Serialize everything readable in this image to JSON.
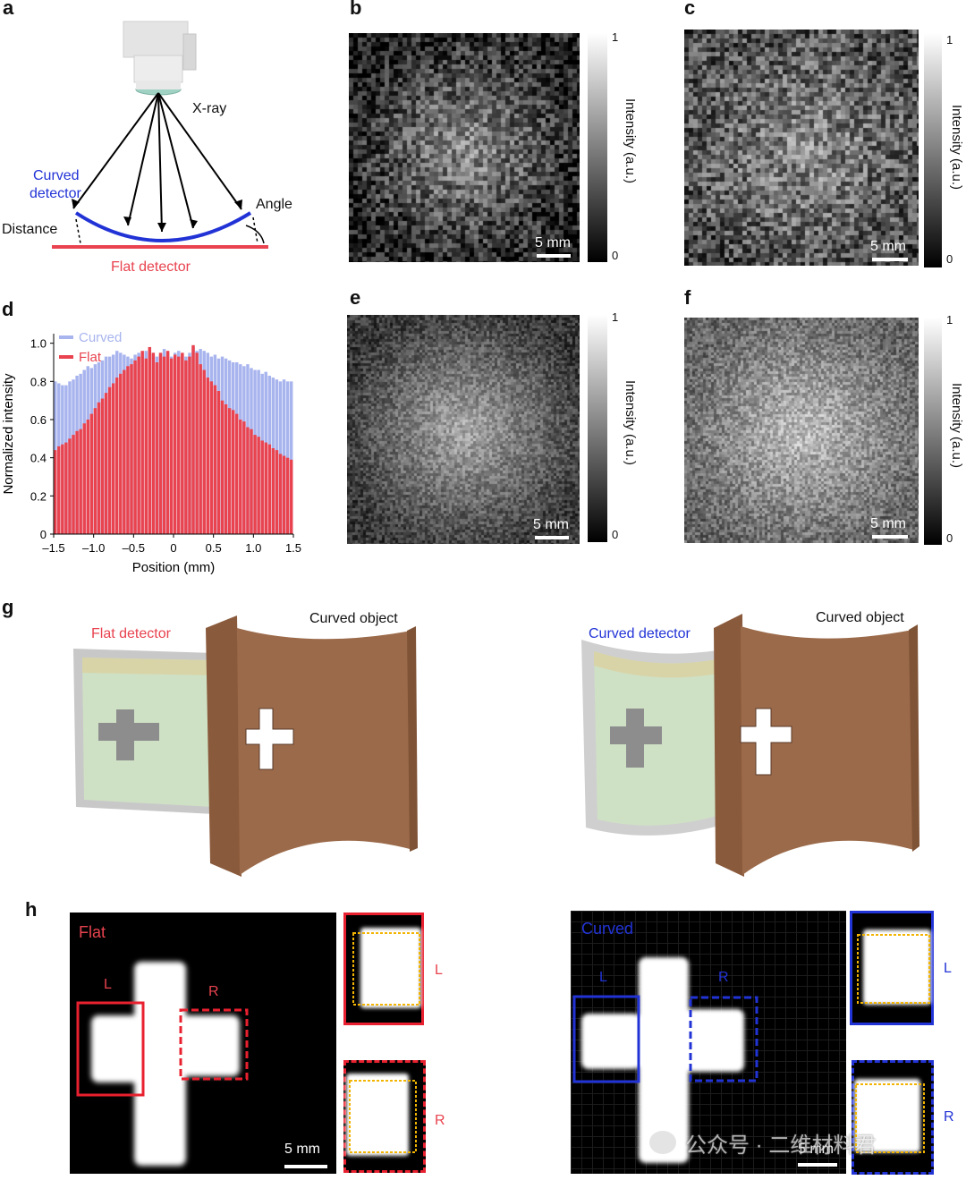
{
  "panels": {
    "a": "a",
    "b": "b",
    "c": "c",
    "d": "d",
    "e": "e",
    "f": "f",
    "g": "g",
    "h": "h"
  },
  "panel_a": {
    "xray": "X-ray",
    "curved_detector_line1": "Curved",
    "curved_detector_line2": "detector",
    "distance": "Distance",
    "angle": "Angle",
    "flat_detector": "Flat detector",
    "colors": {
      "curved": "#2233d6",
      "flat": "#e8434f"
    }
  },
  "maps": {
    "scale": "5 mm",
    "cb_max": "1",
    "cb_min": "0",
    "cb_title": "Intensity (a.u.)"
  },
  "chart_data": {
    "type": "bar",
    "xlabel": "Position (mm)",
    "ylabel": "Normalized intensity",
    "xlim": [
      -1.5,
      1.5
    ],
    "ylim": [
      0,
      1.05
    ],
    "xticks": [
      "–1.5",
      "–1.0",
      "–0.5",
      "0",
      "0.5",
      "1.0",
      "1.5"
    ],
    "yticks": [
      "0",
      "0.2",
      "0.4",
      "0.6",
      "0.8",
      "1.0"
    ],
    "legend_position": "top-left",
    "series": [
      {
        "name": "Curved",
        "color": "#a8b4ee",
        "values": [
          0.8,
          0.79,
          0.78,
          0.78,
          0.8,
          0.81,
          0.83,
          0.84,
          0.86,
          0.88,
          0.87,
          0.89,
          0.9,
          0.91,
          0.93,
          0.93,
          0.94,
          0.96,
          0.95,
          0.94,
          0.93,
          0.92,
          0.94,
          0.95,
          0.93,
          0.96,
          0.95,
          0.94,
          0.93,
          0.94,
          0.97,
          0.95,
          0.93,
          0.95,
          0.96,
          0.94,
          0.93,
          0.95,
          0.98,
          0.96,
          0.97,
          0.96,
          0.95,
          0.93,
          0.94,
          0.92,
          0.93,
          0.92,
          0.91,
          0.9,
          0.9,
          0.89,
          0.88,
          0.89,
          0.87,
          0.86,
          0.86,
          0.84,
          0.85,
          0.83,
          0.82,
          0.81,
          0.8,
          0.81,
          0.8,
          0.8
        ]
      },
      {
        "name": "Flat",
        "color": "#e8434f",
        "values": [
          0.44,
          0.46,
          0.47,
          0.48,
          0.5,
          0.52,
          0.54,
          0.55,
          0.58,
          0.6,
          0.63,
          0.66,
          0.69,
          0.71,
          0.74,
          0.77,
          0.79,
          0.82,
          0.84,
          0.86,
          0.88,
          0.89,
          0.91,
          0.93,
          0.96,
          0.92,
          0.98,
          0.95,
          0.9,
          0.95,
          0.93,
          0.96,
          0.92,
          0.94,
          0.93,
          0.95,
          0.91,
          0.93,
          0.99,
          0.95,
          0.89,
          0.86,
          0.82,
          0.8,
          0.78,
          0.75,
          0.7,
          0.68,
          0.66,
          0.65,
          0.63,
          0.6,
          0.59,
          0.56,
          0.55,
          0.52,
          0.51,
          0.49,
          0.48,
          0.47,
          0.45,
          0.44,
          0.42,
          0.41,
          0.4,
          0.39
        ]
      }
    ]
  },
  "panel_g": {
    "left_detector": "Flat detector",
    "left_object": "Curved object",
    "right_detector": "Curved detector",
    "right_object": "Curved object",
    "object_color": "#9b6a4a"
  },
  "panel_h": {
    "flat": "Flat",
    "curved": "Curved",
    "L": "L",
    "R": "R",
    "scale": "5 mm",
    "watermark": "公众号 · 二维材料君"
  }
}
